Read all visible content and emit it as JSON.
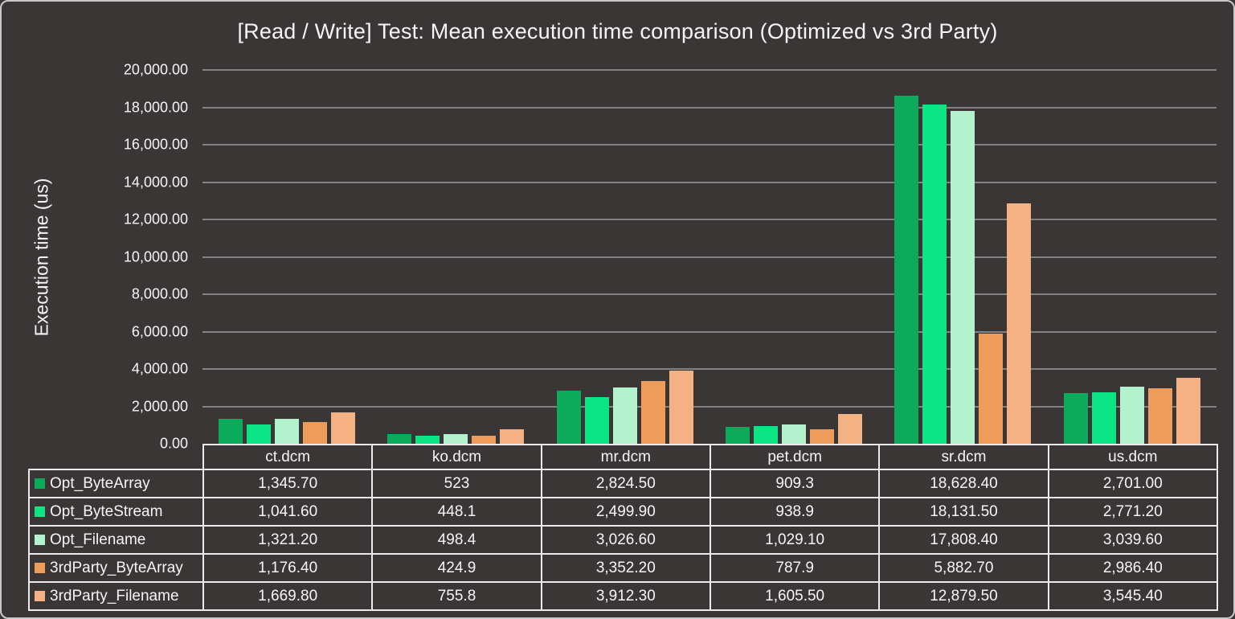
{
  "colors": {
    "background": "#3a3636",
    "gridline": "#828282",
    "table_border": "#ebebeb",
    "text": "#f5f5f5",
    "frame_border": "#c9c9c9"
  },
  "chart_data": {
    "type": "bar",
    "title": "[Read / Write] Test: Mean execution time comparison (Optimized vs 3rd Party)",
    "xlabel": "",
    "ylabel": "Execution time (us)",
    "ylim": [
      0,
      20000
    ],
    "ytick_step": 2000,
    "grid": true,
    "legend_position": "data-table-left",
    "y_ticks": [
      "20,000.00",
      "18,000.00",
      "16,000.00",
      "14,000.00",
      "12,000.00",
      "10,000.00",
      "8,000.00",
      "6,000.00",
      "4,000.00",
      "2,000.00",
      "0.00"
    ],
    "categories": [
      "ct.dcm",
      "ko.dcm",
      "mr.dcm",
      "pet.dcm",
      "sr.dcm",
      "us.dcm"
    ],
    "series": [
      {
        "name": "Opt_ByteArray",
        "color": "#0cab5c",
        "values": [
          1345.7,
          523,
          2824.5,
          909.3,
          18628.4,
          2701.0
        ],
        "display": [
          "1,345.70",
          "523",
          "2,824.50",
          "909.3",
          "18,628.40",
          "2,701.00"
        ]
      },
      {
        "name": "Opt_ByteStream",
        "color": "#0ce584",
        "values": [
          1041.6,
          448.1,
          2499.9,
          938.9,
          18131.5,
          2771.2
        ],
        "display": [
          "1,041.60",
          "448.1",
          "2,499.90",
          "938.9",
          "18,131.50",
          "2,771.20"
        ]
      },
      {
        "name": "Opt_Filename",
        "color": "#b2f3cd",
        "values": [
          1321.2,
          498.4,
          3026.6,
          1029.1,
          17808.4,
          3039.6
        ],
        "display": [
          "1,321.20",
          "498.4",
          "3,026.60",
          "1,029.10",
          "17,808.40",
          "3,039.60"
        ]
      },
      {
        "name": "3rdParty_ByteArray",
        "color": "#ee9c59",
        "values": [
          1176.4,
          424.9,
          3352.2,
          787.9,
          5882.7,
          2986.4
        ],
        "display": [
          "1,176.40",
          "424.9",
          "3,352.20",
          "787.9",
          "5,882.70",
          "2,986.40"
        ]
      },
      {
        "name": "3rdParty_Filename",
        "color": "#f4b183",
        "values": [
          1669.8,
          755.8,
          3912.3,
          1605.5,
          12879.5,
          3545.4
        ],
        "display": [
          "1,669.80",
          "755.8",
          "3,912.30",
          "1,605.50",
          "12,879.50",
          "3,545.40"
        ]
      }
    ]
  }
}
